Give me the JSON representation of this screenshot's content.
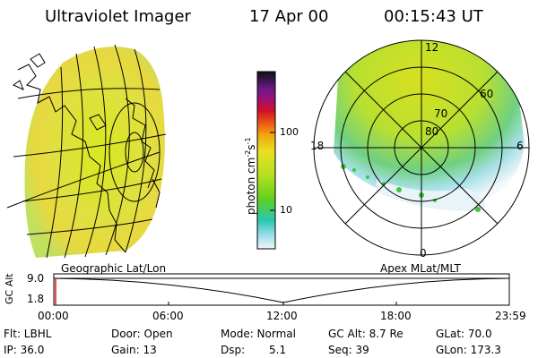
{
  "header": {
    "title": "Ultraviolet Imager",
    "date": "17 Apr 00",
    "time": "00:15:43 UT"
  },
  "colorbar": {
    "unit_label": "photon cm",
    "unit_sup1": "-2",
    "unit_mid": "s",
    "unit_sup2": "-1",
    "tick_100": "100",
    "tick_10": "10",
    "colors": [
      "#101010",
      "#6a1a8a",
      "#b0106a",
      "#e0102a",
      "#f07a10",
      "#f0c820",
      "#c8e020",
      "#70d020",
      "#20c8a0",
      "#80dce8",
      "#e8f4f8"
    ]
  },
  "polar_plot": {
    "lat_labels": [
      "80",
      "70",
      "60"
    ],
    "mlt_labels": {
      "top": "12",
      "left": "18",
      "right": "6",
      "bottom": "0"
    }
  },
  "timeline": {
    "axis_label": "GC Alt",
    "y_top": "9.0",
    "y_bottom": "1.8",
    "left_title": "Geographic Lat/Lon",
    "right_title": "Apex MLat/MLT",
    "ticks": [
      "00:00",
      "06:00",
      "12:00",
      "18:00",
      "23:59"
    ]
  },
  "info": {
    "flt": "Flt: LBHL",
    "ip": "IP: 36.0",
    "door": "Door: Open",
    "gain": "Gain: 13",
    "mode": "Mode: Normal",
    "dsp_label": "Dsp:",
    "dsp_value": "5.1",
    "gc_alt": "GC Alt: 8.7 Re",
    "seq": "Seq: 39",
    "glat": "GLat: 70.0",
    "glon": "GLon: 173.3"
  },
  "accent": {
    "aurora_green": "#3cc83c",
    "marker_red": "#e01010"
  }
}
